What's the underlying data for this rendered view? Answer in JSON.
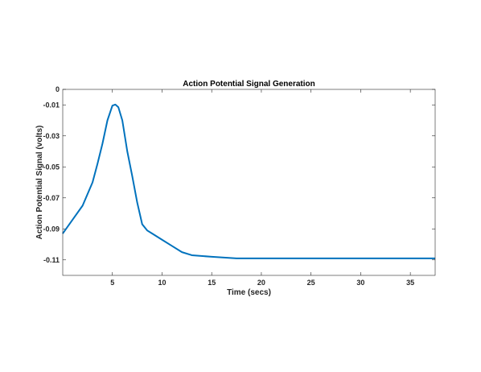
{
  "chart_data": {
    "type": "line",
    "title": "Action Potential Signal Generation",
    "xlabel": "Time (secs)",
    "ylabel": "Action Potential Signal (volts)",
    "xlim": [
      0,
      37.5
    ],
    "ylim": [
      -0.12,
      0
    ],
    "xticks": [
      5,
      10,
      15,
      20,
      25,
      30,
      35
    ],
    "yticks": [
      0,
      -0.01,
      -0.03,
      -0.05,
      -0.07,
      -0.09,
      -0.11
    ],
    "ytick_labels": [
      "0",
      "-0.01",
      "-0.03",
      "-0.05",
      "-0.07",
      "-0.09",
      "-0.11"
    ],
    "grid": false,
    "line_color": "#0072BD",
    "series": [
      {
        "x": [
          0,
          1,
          2,
          3,
          3.5,
          4,
          4.5,
          5,
          5.3,
          5.6,
          6,
          6.5,
          7,
          7.5,
          8,
          8.5,
          9,
          10,
          11,
          12,
          13,
          15,
          17.5,
          20,
          25,
          30,
          37.5
        ],
        "y": [
          -0.093,
          -0.084,
          -0.075,
          -0.06,
          -0.048,
          -0.035,
          -0.02,
          -0.0105,
          -0.0098,
          -0.0115,
          -0.02,
          -0.04,
          -0.056,
          -0.073,
          -0.087,
          -0.091,
          -0.093,
          -0.097,
          -0.101,
          -0.105,
          -0.107,
          -0.108,
          -0.109,
          -0.109,
          -0.109,
          -0.109,
          -0.109
        ]
      }
    ]
  }
}
